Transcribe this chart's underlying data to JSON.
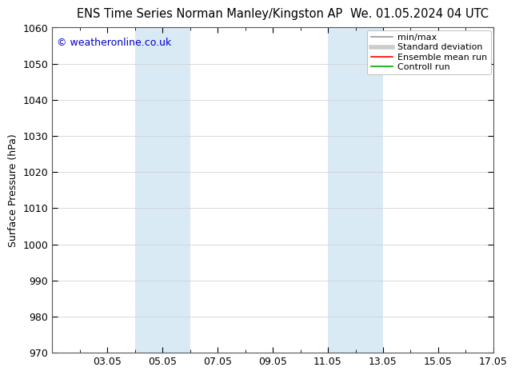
{
  "title_left": "ENS Time Series Norman Manley/Kingston AP",
  "title_right": "We. 01.05.2024 04 UTC",
  "ylabel": "Surface Pressure (hPa)",
  "ylim": [
    970,
    1060
  ],
  "yticks": [
    970,
    980,
    990,
    1000,
    1010,
    1020,
    1030,
    1040,
    1050,
    1060
  ],
  "xlim": [
    1,
    17
  ],
  "xtick_labels": [
    "03.05",
    "05.05",
    "07.05",
    "09.05",
    "11.05",
    "13.05",
    "15.05",
    "17.05"
  ],
  "xtick_positions": [
    3,
    5,
    7,
    9,
    11,
    13,
    15,
    17
  ],
  "shaded_regions": [
    {
      "xmin": 4,
      "xmax": 6,
      "color": "#daeaf5"
    },
    {
      "xmin": 11,
      "xmax": 13,
      "color": "#daeaf5"
    }
  ],
  "watermark": "© weatheronline.co.uk",
  "watermark_color": "#0000cc",
  "legend_entries": [
    {
      "label": "min/max",
      "color": "#999999",
      "linestyle": "-",
      "lw": 1.2
    },
    {
      "label": "Standard deviation",
      "color": "#cccccc",
      "linestyle": "-",
      "lw": 4
    },
    {
      "label": "Ensemble mean run",
      "color": "#ff0000",
      "linestyle": "-",
      "lw": 1.2
    },
    {
      "label": "Controll run",
      "color": "#00aa00",
      "linestyle": "-",
      "lw": 1.2
    }
  ],
  "background_color": "#ffffff",
  "grid_color": "#cccccc",
  "title_fontsize": 10.5,
  "tick_fontsize": 9,
  "ylabel_fontsize": 9,
  "watermark_fontsize": 9
}
